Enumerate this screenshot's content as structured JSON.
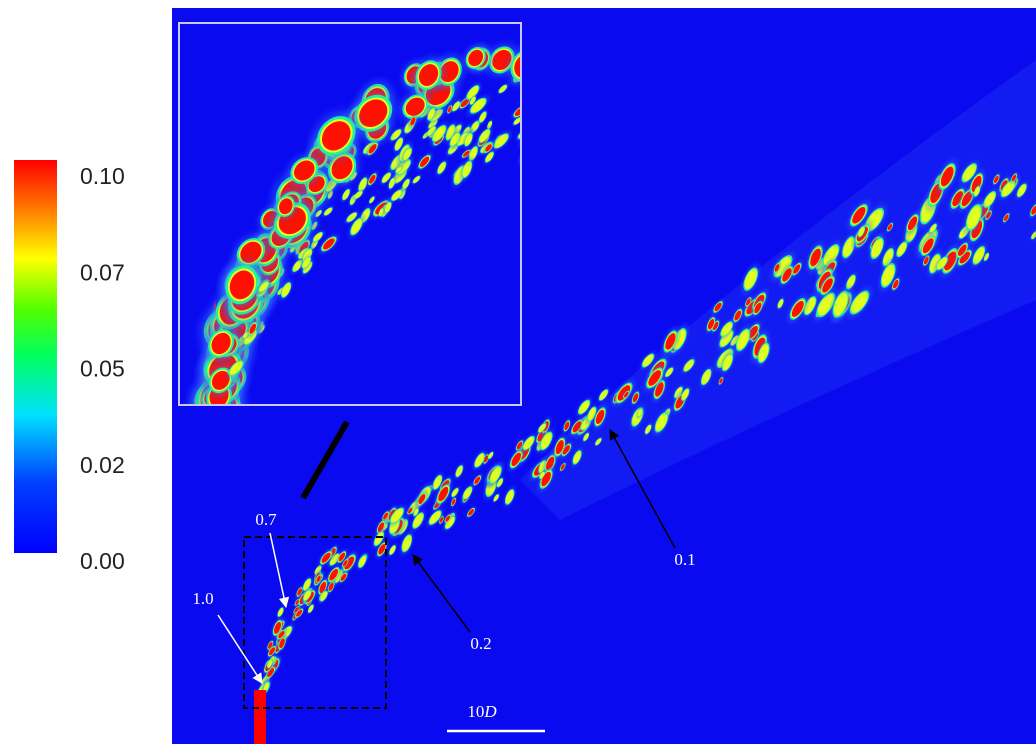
{
  "colorbar": {
    "ticks": [
      "0.10",
      "0.07",
      "0.05",
      "0.02",
      "0.00"
    ]
  },
  "annotations": [
    "1.0",
    "0.7",
    "0.2",
    "0.1"
  ],
  "scale_bar": {
    "number": "10",
    "unit": "D"
  }
}
